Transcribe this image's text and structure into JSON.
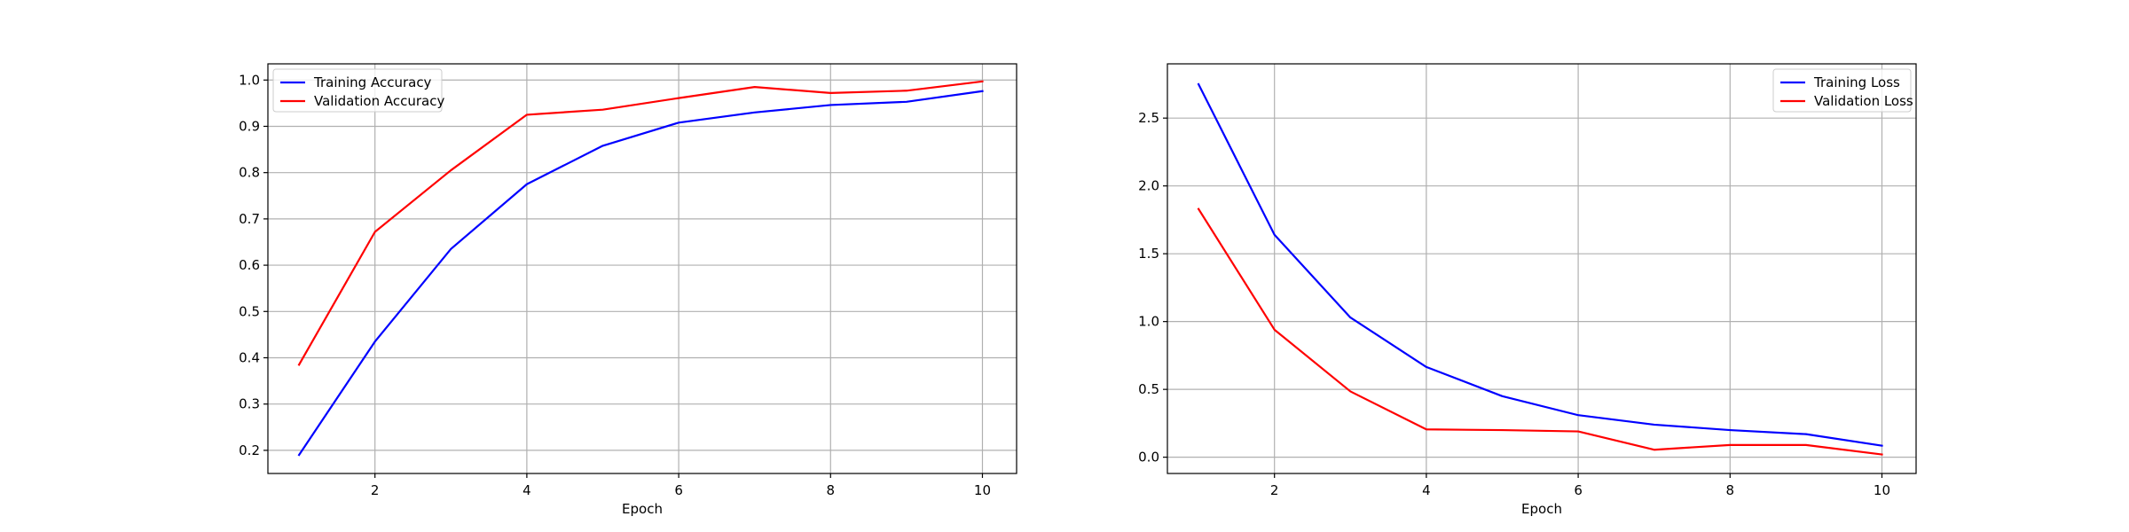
{
  "chart_data": [
    {
      "type": "line",
      "title": "",
      "xlabel": "Epoch",
      "ylabel": "",
      "xlim": [
        0.59,
        10.45
      ],
      "ylim": [
        0.15,
        1.035
      ],
      "xticks": [
        2,
        4,
        6,
        8,
        10
      ],
      "xtick_labels": [
        "2",
        "4",
        "6",
        "8",
        "10"
      ],
      "yticks": [
        0.2,
        0.3,
        0.4,
        0.5,
        0.6,
        0.7,
        0.8,
        0.9,
        1.0
      ],
      "ytick_labels": [
        "0.2",
        "0.3",
        "0.4",
        "0.5",
        "0.6",
        "0.7",
        "0.8",
        "0.9",
        "1.0"
      ],
      "grid": true,
      "legend_position": "top-left",
      "x": [
        1,
        2,
        3,
        4,
        5,
        6,
        7,
        8,
        9,
        10
      ],
      "series": [
        {
          "name": "Training Accuracy",
          "color": "#0000ff",
          "values": [
            0.19,
            0.435,
            0.635,
            0.775,
            0.858,
            0.908,
            0.93,
            0.946,
            0.953,
            0.976
          ]
        },
        {
          "name": "Validation Accuracy",
          "color": "#ff0000",
          "values": [
            0.385,
            0.672,
            0.805,
            0.925,
            0.936,
            0.961,
            0.985,
            0.972,
            0.977,
            0.997
          ]
        }
      ]
    },
    {
      "type": "line",
      "title": "",
      "xlabel": "Epoch",
      "ylabel": "",
      "xlim": [
        0.59,
        10.45
      ],
      "ylim": [
        -0.12,
        2.9
      ],
      "xticks": [
        2,
        4,
        6,
        8,
        10
      ],
      "xtick_labels": [
        "2",
        "4",
        "6",
        "8",
        "10"
      ],
      "yticks": [
        0.0,
        0.5,
        1.0,
        1.5,
        2.0,
        2.5
      ],
      "ytick_labels": [
        "0.0",
        "0.5",
        "1.0",
        "1.5",
        "2.0",
        "2.5"
      ],
      "grid": true,
      "legend_position": "top-right",
      "x": [
        1,
        2,
        3,
        4,
        5,
        6,
        7,
        8,
        9,
        10
      ],
      "series": [
        {
          "name": "Training Loss",
          "color": "#0000ff",
          "values": [
            2.75,
            1.64,
            1.03,
            0.665,
            0.45,
            0.31,
            0.24,
            0.2,
            0.17,
            0.085
          ]
        },
        {
          "name": "Validation Loss",
          "color": "#ff0000",
          "values": [
            1.83,
            0.94,
            0.485,
            0.205,
            0.2,
            0.19,
            0.055,
            0.09,
            0.09,
            0.02
          ]
        }
      ]
    }
  ]
}
